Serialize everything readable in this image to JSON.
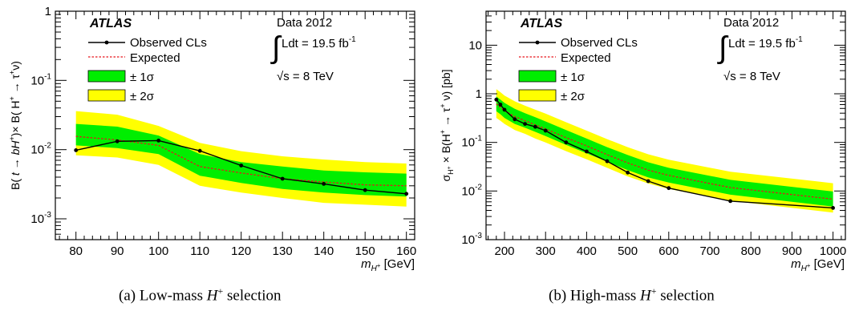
{
  "chart_data": [
    {
      "type": "line",
      "panel_label": "(a)",
      "caption_text": "Low-mass",
      "caption_symbol": "H",
      "caption_sup": "+",
      "caption_tail": "selection",
      "experiment": "ATLAS",
      "legend": {
        "observed": "Observed CLs",
        "expected": "Expected",
        "band1": "± 1σ",
        "band2": "± 2σ"
      },
      "annotation": {
        "data_year": "Data 2012",
        "lumi_prefix": "Ldt = 19.5 fb",
        "lumi_exp": "-1",
        "energy_prefix": "√s = 8 TeV"
      },
      "xlabel": "m_H+ [GeV]",
      "ylabel": "B(t → bH+) × B(H+ → τ+ν)",
      "xlim": [
        75,
        162
      ],
      "ylim": [
        0.0005,
        1
      ],
      "yscale": "log",
      "x_ticks": [
        80,
        90,
        100,
        110,
        120,
        130,
        140,
        150,
        160
      ],
      "y_tick_labels": [
        {
          "value": 1,
          "base": "1",
          "exp": ""
        },
        {
          "value": 0.1,
          "base": "10",
          "exp": "-1"
        },
        {
          "value": 0.01,
          "base": "10",
          "exp": "-2"
        },
        {
          "value": 0.001,
          "base": "10",
          "exp": "-3"
        }
      ],
      "x": [
        80,
        90,
        100,
        110,
        120,
        130,
        140,
        150,
        160
      ],
      "observed": [
        0.0098,
        0.0132,
        0.0135,
        0.0096,
        0.0059,
        0.0038,
        0.0032,
        0.0026,
        0.0023
      ],
      "expected": [
        0.0155,
        0.0138,
        0.0115,
        0.0057,
        0.0046,
        0.0038,
        0.0034,
        0.0031,
        0.003
      ],
      "band1_low": [
        0.0115,
        0.0105,
        0.0086,
        0.0042,
        0.0033,
        0.0027,
        0.0024,
        0.0022,
        0.0021
      ],
      "band1_high": [
        0.0235,
        0.0215,
        0.016,
        0.0086,
        0.0066,
        0.0057,
        0.005,
        0.0047,
        0.0045
      ],
      "band2_low": [
        0.0083,
        0.0077,
        0.006,
        0.003,
        0.0024,
        0.002,
        0.0017,
        0.0016,
        0.0015
      ],
      "band2_high": [
        0.036,
        0.032,
        0.022,
        0.0125,
        0.0095,
        0.008,
        0.0072,
        0.0066,
        0.0063
      ]
    },
    {
      "type": "line",
      "panel_label": "(b)",
      "caption_text": "High-mass",
      "caption_symbol": "H",
      "caption_sup": "+",
      "caption_tail": "selection",
      "experiment": "ATLAS",
      "legend": {
        "observed": "Observed CLs",
        "expected": "Expected",
        "band1": "± 1σ",
        "band2": "± 2σ"
      },
      "annotation": {
        "data_year": "Data 2012",
        "lumi_prefix": "Ldt = 19.5 fb",
        "lumi_exp": "-1",
        "energy_prefix": "√s = 8 TeV"
      },
      "xlabel": "m_H+ [GeV]",
      "ylabel": "σ_H+ × B(H+ → τ+ν) [pb]",
      "xlim": [
        155,
        1030
      ],
      "ylim": [
        0.001,
        50
      ],
      "yscale": "log",
      "x_ticks": [
        200,
        300,
        400,
        500,
        600,
        700,
        800,
        900,
        1000
      ],
      "y_tick_labels": [
        {
          "value": 10,
          "base": "10",
          "exp": ""
        },
        {
          "value": 1,
          "base": "1",
          "exp": ""
        },
        {
          "value": 0.1,
          "base": "10",
          "exp": "-1"
        },
        {
          "value": 0.01,
          "base": "10",
          "exp": "-2"
        },
        {
          "value": 0.001,
          "base": "10",
          "exp": "-3"
        }
      ],
      "x": [
        180,
        190,
        200,
        225,
        250,
        275,
        300,
        350,
        400,
        450,
        500,
        550,
        600,
        750,
        1000
      ],
      "observed": [
        0.76,
        0.6,
        0.47,
        0.3,
        0.24,
        0.21,
        0.175,
        0.1,
        0.065,
        0.041,
        0.024,
        0.016,
        0.0115,
        0.0062,
        0.0045
      ],
      "expected": [
        0.62,
        0.53,
        0.45,
        0.34,
        0.28,
        0.23,
        0.19,
        0.125,
        0.085,
        0.056,
        0.038,
        0.027,
        0.021,
        0.0118,
        0.0068
      ],
      "band1_low": [
        0.44,
        0.38,
        0.32,
        0.24,
        0.2,
        0.165,
        0.135,
        0.089,
        0.06,
        0.04,
        0.027,
        0.019,
        0.015,
        0.0084,
        0.0048
      ],
      "band1_high": [
        0.88,
        0.76,
        0.65,
        0.49,
        0.4,
        0.33,
        0.27,
        0.18,
        0.12,
        0.08,
        0.055,
        0.039,
        0.03,
        0.017,
        0.0098
      ],
      "band2_low": [
        0.32,
        0.28,
        0.24,
        0.18,
        0.15,
        0.12,
        0.1,
        0.066,
        0.045,
        0.03,
        0.02,
        0.0143,
        0.011,
        0.0063,
        0.0036
      ],
      "band2_high": [
        1.25,
        1.08,
        0.92,
        0.7,
        0.57,
        0.47,
        0.39,
        0.26,
        0.175,
        0.117,
        0.08,
        0.057,
        0.044,
        0.025,
        0.0145
      ]
    }
  ],
  "colors": {
    "band1": "#00ee00",
    "band2": "#ffff00",
    "observed": "#000000",
    "expected": "#e8141b",
    "frame": "#000000"
  }
}
